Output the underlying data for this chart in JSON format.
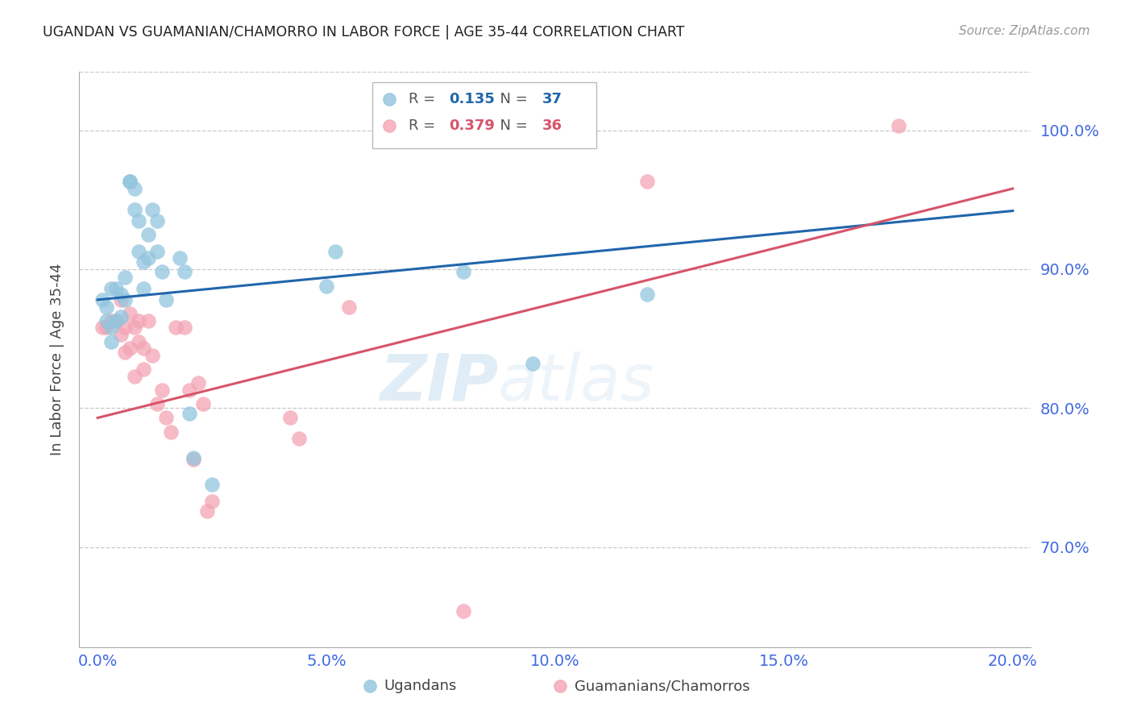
{
  "title": "UGANDAN VS GUAMANIAN/CHAMORRO IN LABOR FORCE | AGE 35-44 CORRELATION CHART",
  "source": "Source: ZipAtlas.com",
  "xlabel_ticks": [
    0.0,
    0.05,
    0.1,
    0.15,
    0.2
  ],
  "ylabel_display": [
    0.7,
    0.8,
    0.9,
    1.0
  ],
  "xlim": [
    -0.004,
    0.204
  ],
  "ylim": [
    0.628,
    1.042
  ],
  "blue_color": "#92c5de",
  "pink_color": "#f4a4b4",
  "blue_line_color": "#2166ac",
  "pink_line_color": "#d6546a",
  "axis_color": "#4169E1",
  "watermark": "ZIPatlas",
  "blue_scatter_x": [
    0.001,
    0.002,
    0.002,
    0.003,
    0.003,
    0.003,
    0.004,
    0.004,
    0.005,
    0.005,
    0.006,
    0.006,
    0.007,
    0.007,
    0.008,
    0.008,
    0.009,
    0.009,
    0.01,
    0.01,
    0.011,
    0.011,
    0.012,
    0.013,
    0.013,
    0.014,
    0.015,
    0.018,
    0.019,
    0.02,
    0.021,
    0.025,
    0.05,
    0.052,
    0.08,
    0.095,
    0.12
  ],
  "blue_scatter_y": [
    0.878,
    0.873,
    0.863,
    0.886,
    0.858,
    0.848,
    0.886,
    0.863,
    0.882,
    0.866,
    0.894,
    0.878,
    0.963,
    0.963,
    0.958,
    0.943,
    0.935,
    0.913,
    0.905,
    0.886,
    0.925,
    0.908,
    0.943,
    0.935,
    0.913,
    0.898,
    0.878,
    0.908,
    0.898,
    0.796,
    0.764,
    0.745,
    0.888,
    0.913,
    0.898,
    0.832,
    0.882
  ],
  "pink_scatter_x": [
    0.001,
    0.002,
    0.003,
    0.004,
    0.005,
    0.005,
    0.006,
    0.006,
    0.007,
    0.007,
    0.008,
    0.008,
    0.009,
    0.009,
    0.01,
    0.01,
    0.011,
    0.012,
    0.013,
    0.014,
    0.015,
    0.016,
    0.017,
    0.019,
    0.02,
    0.021,
    0.022,
    0.023,
    0.024,
    0.025,
    0.042,
    0.044,
    0.055,
    0.08,
    0.12,
    0.175
  ],
  "pink_scatter_y": [
    0.858,
    0.858,
    0.863,
    0.863,
    0.853,
    0.878,
    0.858,
    0.84,
    0.868,
    0.843,
    0.858,
    0.823,
    0.863,
    0.848,
    0.843,
    0.828,
    0.863,
    0.838,
    0.803,
    0.813,
    0.793,
    0.783,
    0.858,
    0.858,
    0.813,
    0.763,
    0.818,
    0.803,
    0.726,
    0.733,
    0.793,
    0.778,
    0.873,
    0.654,
    0.963,
    1.003
  ],
  "blue_trend_x": [
    0.0,
    0.2
  ],
  "blue_trend_y": [
    0.878,
    0.942
  ],
  "pink_trend_x": [
    0.0,
    0.2
  ],
  "pink_trend_y": [
    0.793,
    0.958
  ]
}
